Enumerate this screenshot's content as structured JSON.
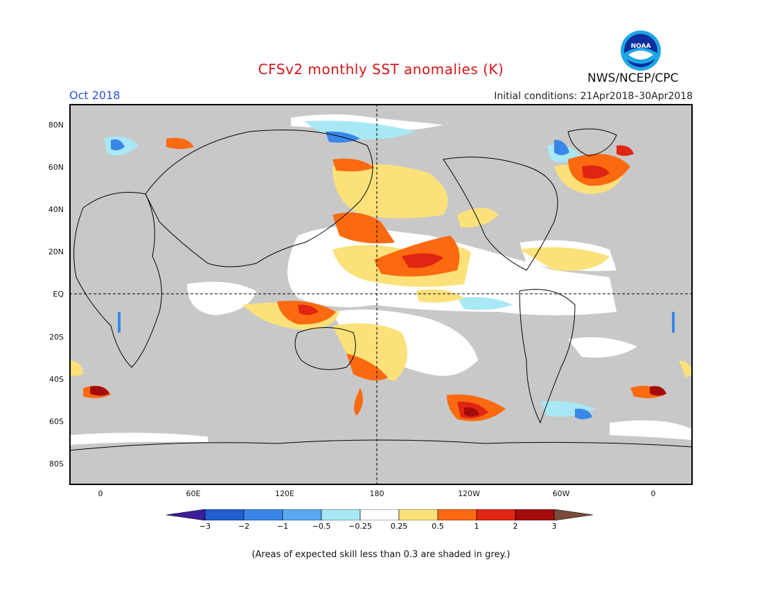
{
  "title": "CFSv2 monthly SST anomalies (K)",
  "agency": "NWS/NCEP/CPC",
  "logo_text": "NOAA",
  "valid_month": "Oct 2018",
  "initial_conditions": "Initial conditions: 21Apr2018–30Apr2018",
  "lat_labels": [
    "80N",
    "60N",
    "40N",
    "20N",
    "EQ",
    "20S",
    "40S",
    "60S",
    "80S"
  ],
  "lon_labels": [
    "0",
    "60E",
    "120E",
    "180",
    "120W",
    "60W",
    "0"
  ],
  "colorbar": {
    "labels": [
      "−3",
      "−2",
      "−1",
      "−0.5",
      "−0.25",
      "0.25",
      "0.5",
      "1",
      "2",
      "3"
    ],
    "colors": [
      "#3c1d9b",
      "#1f5fd0",
      "#3a86e8",
      "#5aa8f0",
      "#a8e8f4",
      "#ffffff",
      "#fce17a",
      "#fb6a10",
      "#e02512",
      "#a50b0b",
      "#7a4a3a"
    ]
  },
  "skill_note": "(Areas of expected skill less than 0.3 are shaded in grey.)",
  "colors": {
    "title": "#d8151b",
    "month": "#2a4fd6",
    "grey_mask": "#c8c8c8",
    "land": "#c8c8c8"
  }
}
